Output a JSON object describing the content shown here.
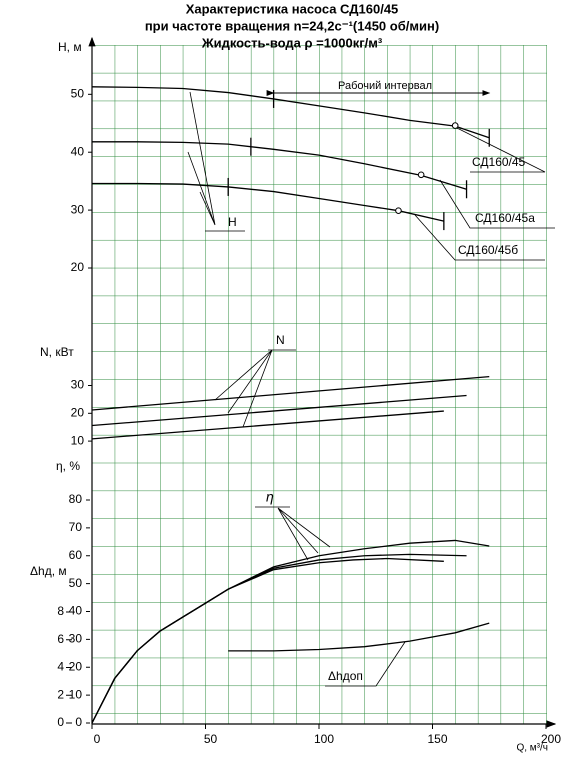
{
  "chart_data": [
    {
      "type": "line",
      "title": "Характеристика насоса СД160/45",
      "subtitle": [
        "при частоте вращения n=24,2с⁻¹(1450 об/мин)",
        "Жидкость-вода ρ =1000кг/м³"
      ],
      "ylabel": "H, м",
      "ylim": [
        20,
        58
      ],
      "yticks": [
        20,
        30,
        40,
        50
      ],
      "annotations": [
        "Рабочий интервал",
        "H"
      ],
      "series": [
        {
          "name": "СД160/45",
          "color": "#000000",
          "x": [
            0,
            20,
            40,
            60,
            80,
            100,
            120,
            140,
            160,
            175
          ],
          "values": [
            51.3,
            51.2,
            51,
            50.3,
            49.2,
            48,
            46.8,
            45.5,
            44.5,
            42.5
          ],
          "working_range": [
            80,
            175
          ],
          "rated_point": [
            160,
            44.6
          ]
        },
        {
          "name": "СД160/45а",
          "color": "#000000",
          "x": [
            0,
            20,
            40,
            60,
            80,
            100,
            120,
            145,
            165
          ],
          "values": [
            41.8,
            41.8,
            41.7,
            41.4,
            40.5,
            39.5,
            38,
            36,
            33.6
          ],
          "working_range": [
            70,
            165
          ],
          "rated_point": [
            145,
            36.1
          ]
        },
        {
          "name": "СД160/45б",
          "color": "#000000",
          "x": [
            0,
            20,
            40,
            60,
            80,
            100,
            120,
            135,
            155
          ],
          "values": [
            34.6,
            34.6,
            34.5,
            34,
            33.2,
            32,
            30.8,
            29.9,
            28.1
          ],
          "working_range": [
            60,
            155
          ],
          "rated_point": [
            135,
            29.9
          ]
        }
      ]
    },
    {
      "type": "line",
      "ylabel": "N, кВт",
      "ylim": [
        5,
        35
      ],
      "yticks": [
        10,
        20,
        30
      ],
      "annotations": [
        "N"
      ],
      "series": [
        {
          "name": null,
          "color": "#000000",
          "x": [
            0,
            175
          ],
          "values": [
            21.2,
            33.2
          ]
        },
        {
          "name": null,
          "color": "#000000",
          "x": [
            0,
            165
          ],
          "values": [
            15.6,
            26.4
          ]
        },
        {
          "name": null,
          "color": "#000000",
          "x": [
            0,
            155
          ],
          "values": [
            10.8,
            20.8
          ]
        }
      ]
    },
    {
      "type": "line",
      "ylabel": "η, %",
      "ylim": [
        0,
        80
      ],
      "yticks": [
        0,
        10,
        20,
        30,
        40,
        50,
        60,
        70,
        80
      ],
      "annotations": [
        "η"
      ],
      "series": [
        {
          "name": null,
          "color": "#000000",
          "x": [
            0,
            10,
            20,
            30,
            40,
            50,
            60,
            80,
            100,
            120,
            140,
            160,
            175
          ],
          "values": [
            0,
            16,
            26,
            33,
            38,
            43,
            48,
            56,
            60,
            62.5,
            64.5,
            65.5,
            63.5
          ]
        },
        {
          "name": null,
          "color": "#000000",
          "x": [
            0,
            10,
            20,
            30,
            40,
            50,
            60,
            80,
            100,
            120,
            140,
            165
          ],
          "values": [
            0,
            16,
            26,
            33,
            38,
            43,
            48,
            55.5,
            58.5,
            60,
            60.5,
            60
          ]
        },
        {
          "name": null,
          "color": "#000000",
          "x": [
            0,
            10,
            20,
            30,
            40,
            50,
            60,
            80,
            100,
            115,
            130,
            155
          ],
          "values": [
            0,
            16,
            26,
            33,
            38,
            43,
            48,
            55,
            57.5,
            58.5,
            59,
            58
          ]
        }
      ]
    },
    {
      "type": "line",
      "ylabel": "Δhд, м",
      "xlabel": "Q, м³/ч",
      "xlim": [
        0,
        200
      ],
      "xticks": [
        0,
        50,
        100,
        150,
        200
      ],
      "ylim": [
        0,
        8
      ],
      "yticks": [
        0,
        2,
        4,
        6,
        8
      ],
      "annotations": [
        "Δhдоп"
      ],
      "series": [
        {
          "name": null,
          "color": "#000000",
          "x": [
            60,
            80,
            100,
            120,
            140,
            160,
            175
          ],
          "values": [
            5.2,
            5.2,
            5.3,
            5.5,
            5.9,
            6.5,
            7.2
          ]
        }
      ]
    }
  ]
}
